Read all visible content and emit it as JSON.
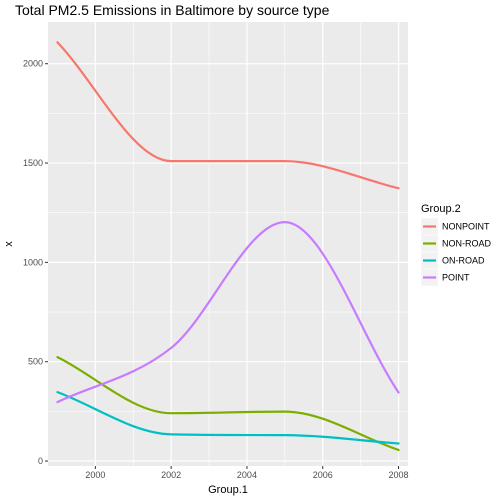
{
  "chart_data": {
    "type": "line",
    "title": "Total PM2.5 Emissions in Baltimore by source type",
    "xlabel": "Group.1",
    "ylabel": "x",
    "x": [
      1999,
      2002,
      2005,
      2008
    ],
    "xlim": [
      1998.75,
      2008.25
    ],
    "ylim": [
      -25,
      2210
    ],
    "x_ticks": [
      2000,
      2002,
      2004,
      2006,
      2008
    ],
    "y_ticks": [
      0,
      500,
      1000,
      1500,
      2000
    ],
    "x_tick_labels": [
      "2000",
      "2002",
      "2004",
      "2006",
      "2008"
    ],
    "y_tick_labels": [
      "0",
      "500",
      "1000",
      "1500",
      "2000"
    ],
    "grid": true,
    "smoothed": true,
    "legend": {
      "title": "Group.2",
      "placement": "right"
    },
    "series": [
      {
        "name": "NONPOINT",
        "color": "#F8766D",
        "values": [
          2107.6,
          1509.5,
          1509.5,
          1373.2
        ]
      },
      {
        "name": "NON-ROAD",
        "color": "#7CAE00",
        "values": [
          522.9,
          240.8,
          248.9,
          55.8
        ]
      },
      {
        "name": "ON-ROAD",
        "color": "#00BFC4",
        "values": [
          346.8,
          134.3,
          130.4,
          88.3
        ]
      },
      {
        "name": "POINT",
        "color": "#C77CFF",
        "values": [
          296.8,
          569.3,
          1202.5,
          344.98
        ]
      }
    ]
  }
}
